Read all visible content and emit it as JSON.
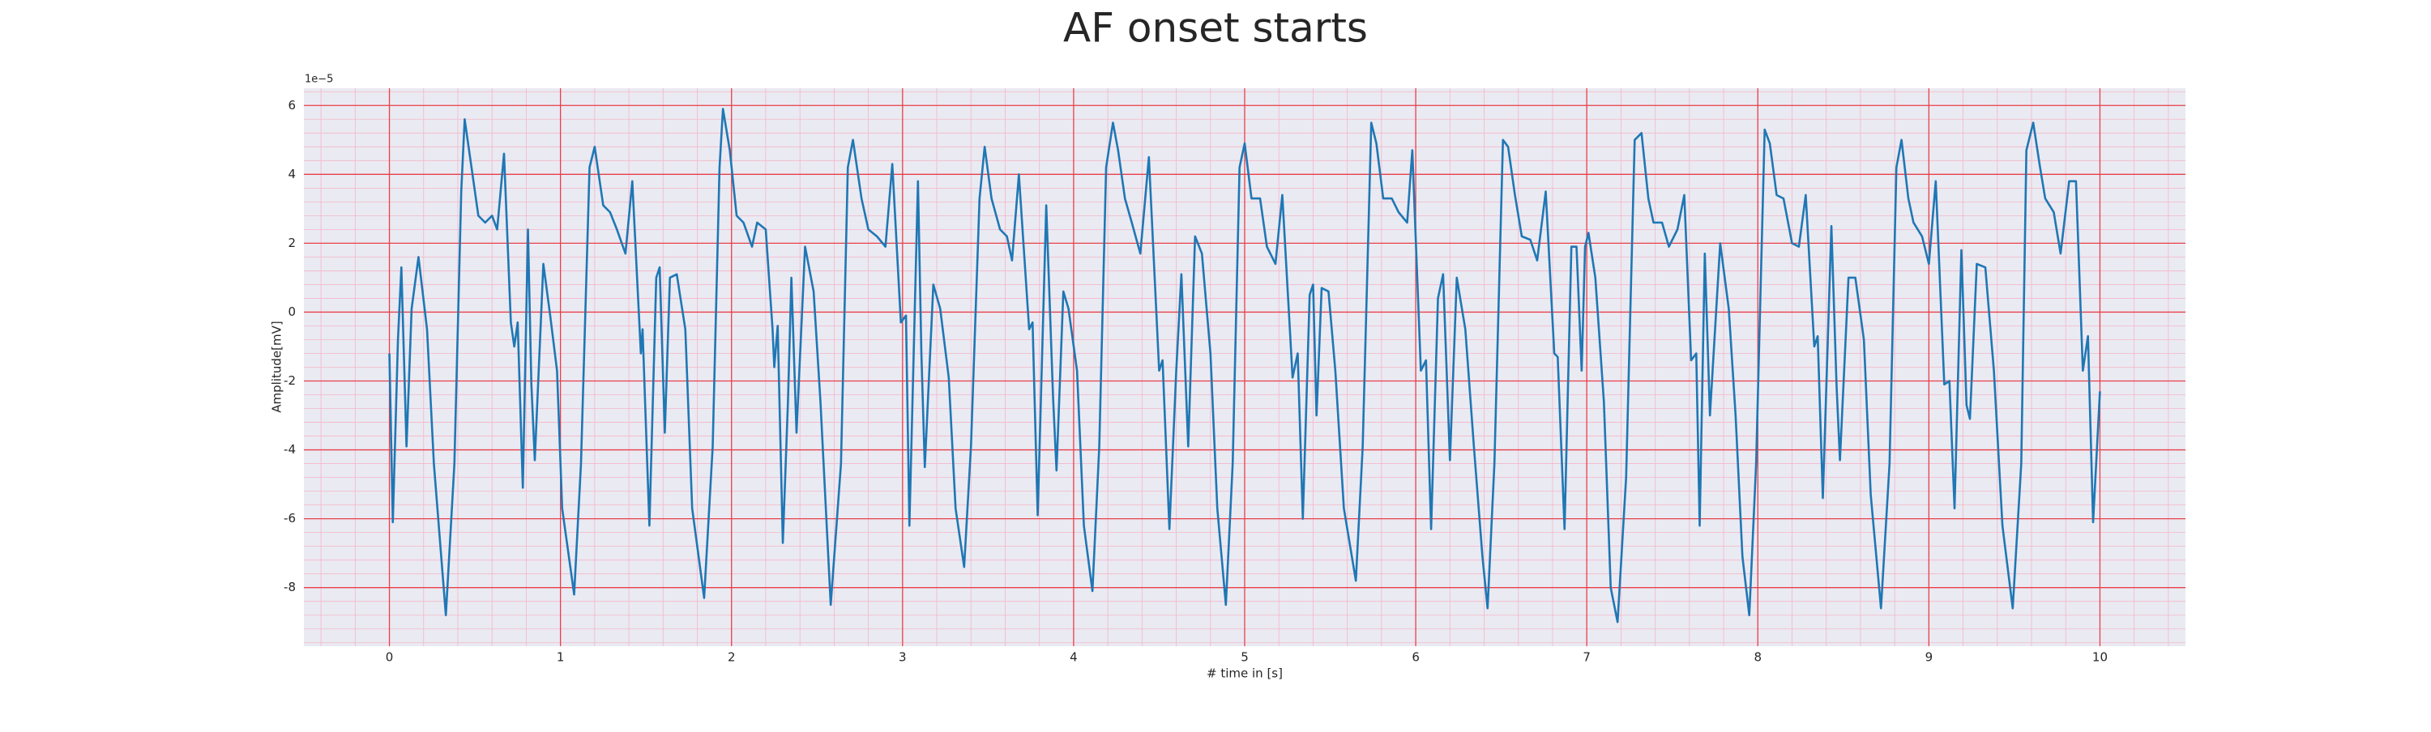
{
  "chart_data": {
    "type": "line",
    "title": "AF onset starts",
    "xlabel": "# time in [s]",
    "ylabel": "Amplitude[mV]",
    "offset_text": "1e−5",
    "color": "#1f77b4",
    "grid": true,
    "minor_grid": true,
    "xlim": [
      -0.5,
      10.5
    ],
    "ylim": [
      -9.7,
      6.5
    ],
    "xticks": [
      0,
      1,
      2,
      3,
      4,
      5,
      6,
      7,
      8,
      9,
      10
    ],
    "yticks": [
      -8,
      -6,
      -4,
      -2,
      0,
      2,
      4,
      6
    ],
    "x": [
      0,
      0.02,
      0.05,
      0.07,
      0.1,
      0.13,
      0.17,
      0.22,
      0.26,
      0.33,
      0.38,
      0.42,
      0.44,
      0.48,
      0.52,
      0.56,
      0.6,
      0.63,
      0.67,
      0.71,
      0.73,
      0.75,
      0.78,
      0.81,
      0.83,
      0.85,
      0.9,
      0.94,
      0.98,
      1.01,
      1.08,
      1.12,
      1.17,
      1.2,
      1.25,
      1.29,
      1.33,
      1.38,
      1.42,
      1.47,
      1.48,
      1.52,
      1.56,
      1.58,
      1.61,
      1.64,
      1.68,
      1.73,
      1.77,
      1.84,
      1.89,
      1.93,
      1.95,
      1.99,
      2.03,
      2.07,
      2.12,
      2.15,
      2.2,
      2.24,
      2.25,
      2.27,
      2.3,
      2.33,
      2.35,
      2.38,
      2.43,
      2.48,
      2.52,
      2.58,
      2.64,
      2.68,
      2.71,
      2.76,
      2.8,
      2.85,
      2.9,
      2.94,
      2.99,
      3.02,
      3.04,
      3.09,
      3.11,
      3.13,
      3.18,
      3.22,
      3.27,
      3.31,
      3.36,
      3.4,
      3.45,
      3.48,
      3.52,
      3.57,
      3.61,
      3.64,
      3.68,
      3.74,
      3.76,
      3.79,
      3.84,
      3.88,
      3.9,
      3.94,
      3.97,
      4.02,
      4.06,
      4.11,
      4.15,
      4.19,
      4.23,
      4.26,
      4.3,
      4.34,
      4.39,
      4.44,
      4.5,
      4.52,
      4.56,
      4.6,
      4.63,
      4.67,
      4.71,
      4.75,
      4.8,
      4.84,
      4.89,
      4.93,
      4.97,
      5.0,
      5.04,
      5.09,
      5.13,
      5.18,
      5.22,
      5.28,
      5.31,
      5.34,
      5.38,
      5.4,
      5.42,
      5.45,
      5.49,
      5.53,
      5.58,
      5.65,
      5.69,
      5.74,
      5.77,
      5.81,
      5.86,
      5.9,
      5.95,
      5.98,
      6.03,
      6.06,
      6.09,
      6.13,
      6.16,
      6.2,
      6.24,
      6.29,
      6.34,
      6.39,
      6.42,
      6.46,
      6.51,
      6.54,
      6.58,
      6.62,
      6.67,
      6.71,
      6.76,
      6.81,
      6.83,
      6.87,
      6.91,
      6.94,
      6.97,
      6.99,
      7.01,
      7.05,
      7.1,
      7.14,
      7.18,
      7.23,
      7.28,
      7.32,
      7.36,
      7.39,
      7.44,
      7.48,
      7.53,
      7.57,
      7.61,
      7.64,
      7.66,
      7.69,
      7.72,
      7.78,
      7.83,
      7.87,
      7.91,
      7.95,
      7.99,
      8.04,
      8.07,
      8.11,
      8.15,
      8.2,
      8.24,
      8.28,
      8.33,
      8.35,
      8.38,
      8.43,
      8.46,
      8.48,
      8.53,
      8.57,
      8.62,
      8.66,
      8.72,
      8.77,
      8.81,
      8.84,
      8.88,
      8.91,
      8.96,
      9.0,
      9.04,
      9.09,
      9.12,
      9.15,
      9.19,
      9.22,
      9.24,
      9.28,
      9.33,
      9.38,
      9.43,
      9.49,
      9.54,
      9.57,
      9.61,
      9.65,
      9.68,
      9.73,
      9.77,
      9.82,
      9.86,
      9.9,
      9.93,
      9.96,
      10.0
    ],
    "values": [
      -1.2,
      -6.1,
      -0.8,
      1.3,
      -3.9,
      0.1,
      1.6,
      -0.5,
      -4.4,
      -8.8,
      -4.4,
      3.5,
      5.6,
      4.2,
      2.8,
      2.6,
      2.8,
      2.4,
      4.6,
      -0.3,
      -1.0,
      -0.3,
      -5.1,
      2.4,
      -2.1,
      -4.3,
      1.4,
      -0.1,
      -1.7,
      -5.7,
      -8.2,
      -4.4,
      4.2,
      4.8,
      3.1,
      2.9,
      2.4,
      1.7,
      3.8,
      -1.2,
      -0.5,
      -6.2,
      1.0,
      1.3,
      -3.5,
      1.0,
      1.1,
      -0.5,
      -5.7,
      -8.3,
      -3.9,
      4.2,
      5.9,
      4.7,
      2.8,
      2.6,
      1.9,
      2.6,
      2.4,
      -0.5,
      -1.6,
      -0.4,
      -6.7,
      -2.6,
      1.0,
      -3.5,
      1.9,
      0.6,
      -2.6,
      -8.5,
      -4.4,
      4.2,
      5.0,
      3.3,
      2.4,
      2.2,
      1.9,
      4.3,
      -0.3,
      -0.1,
      -6.2,
      3.8,
      -1.2,
      -4.5,
      0.8,
      0.1,
      -1.9,
      -5.7,
      -7.4,
      -3.9,
      3.3,
      4.8,
      3.3,
      2.4,
      2.2,
      1.5,
      4.0,
      -0.5,
      -0.3,
      -5.9,
      3.1,
      -2.5,
      -4.6,
      0.6,
      0.1,
      -1.7,
      -6.2,
      -8.1,
      -3.9,
      4.2,
      5.5,
      4.7,
      3.3,
      2.6,
      1.7,
      4.5,
      -1.7,
      -1.4,
      -6.3,
      -1.7,
      1.1,
      -3.9,
      2.2,
      1.7,
      -1.2,
      -5.7,
      -8.5,
      -4.4,
      4.2,
      4.9,
      3.3,
      3.3,
      1.9,
      1.4,
      3.4,
      -1.9,
      -1.2,
      -6.0,
      0.5,
      0.8,
      -3.0,
      0.7,
      0.6,
      -1.7,
      -5.7,
      -7.8,
      -3.9,
      5.5,
      4.9,
      3.3,
      3.3,
      2.9,
      2.6,
      4.7,
      -1.7,
      -1.4,
      -6.3,
      0.4,
      1.1,
      -4.3,
      1.0,
      -0.5,
      -3.9,
      -7.1,
      -8.6,
      -4.4,
      5.0,
      4.8,
      3.4,
      2.2,
      2.1,
      1.5,
      3.5,
      -1.2,
      -1.3,
      -6.3,
      1.9,
      1.9,
      -1.7,
      1.9,
      2.3,
      1.0,
      -2.6,
      -8.0,
      -9.0,
      -4.8,
      5.0,
      5.2,
      3.3,
      2.6,
      2.6,
      1.9,
      2.4,
      3.4,
      -1.4,
      -1.2,
      -6.2,
      1.7,
      -3.0,
      2.0,
      0.1,
      -3.0,
      -7.1,
      -8.8,
      -4.4,
      5.3,
      4.9,
      3.4,
      3.3,
      2.0,
      1.9,
      3.4,
      -1.0,
      -0.7,
      -5.4,
      2.5,
      -2.1,
      -4.3,
      1.0,
      1.0,
      -0.8,
      -5.3,
      -8.6,
      -4.4,
      4.2,
      5.0,
      3.3,
      2.6,
      2.2,
      1.4,
      3.8,
      -2.1,
      -2.0,
      -5.7,
      1.8,
      -2.7,
      -3.1,
      1.4,
      1.3,
      -1.7,
      -6.2,
      -8.6,
      -4.4,
      4.7,
      5.5,
      4.2,
      3.3,
      2.9,
      1.7,
      3.8,
      3.8,
      -1.7,
      -0.7,
      -6.1,
      -2.3
    ]
  }
}
